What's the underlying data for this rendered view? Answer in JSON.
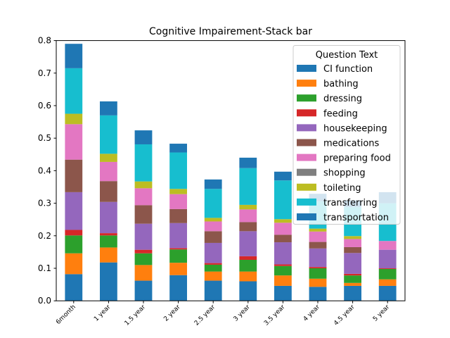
{
  "chart_data": {
    "type": "bar",
    "stacked": true,
    "title": "Cognitive Impairement-Stack bar",
    "xlabel": "",
    "ylabel": "",
    "ylim": [
      0,
      0.8
    ],
    "yticks": [
      "0.0",
      "0.1",
      "0.2",
      "0.3",
      "0.4",
      "0.5",
      "0.6",
      "0.7",
      "0.8"
    ],
    "grid": false,
    "legend": {
      "title": "Question Text",
      "placement": "top-right"
    },
    "categories": [
      "6month",
      "1 year",
      "1.5 year",
      "2 year",
      "2.5 year",
      "3 year",
      "3.5 year",
      "4 year",
      "4.5 year",
      "5 year"
    ],
    "series": [
      {
        "name": "CI function",
        "color": "#1f77b4",
        "values": [
          0.082,
          0.118,
          0.062,
          0.079,
          0.062,
          0.06,
          0.046,
          0.043,
          0.046,
          0.046
        ]
      },
      {
        "name": "bathing",
        "color": "#ff7f0e",
        "values": [
          0.064,
          0.046,
          0.048,
          0.038,
          0.028,
          0.03,
          0.032,
          0.025,
          0.009,
          0.02
        ]
      },
      {
        "name": "dressing",
        "color": "#2ca02c",
        "values": [
          0.055,
          0.037,
          0.036,
          0.041,
          0.021,
          0.036,
          0.029,
          0.032,
          0.023,
          0.032
        ]
      },
      {
        "name": "feeding",
        "color": "#d62728",
        "values": [
          0.017,
          0.007,
          0.011,
          0.004,
          0.005,
          0.011,
          0.005,
          0.004,
          0.005,
          0.002
        ]
      },
      {
        "name": "housekeeping",
        "color": "#9467bd",
        "values": [
          0.116,
          0.096,
          0.08,
          0.077,
          0.062,
          0.077,
          0.068,
          0.057,
          0.064,
          0.057
        ]
      },
      {
        "name": "medications",
        "color": "#8c564b",
        "values": [
          0.1,
          0.064,
          0.057,
          0.043,
          0.036,
          0.028,
          0.023,
          0.02,
          0.018,
          0.0
        ]
      },
      {
        "name": "preparing food",
        "color": "#e377c2",
        "values": [
          0.109,
          0.059,
          0.052,
          0.046,
          0.03,
          0.039,
          0.037,
          0.032,
          0.025,
          0.027
        ]
      },
      {
        "name": "shopping",
        "color": "#7f7f7f",
        "values": [
          0.0,
          0.0,
          0.0,
          0.0,
          0.0,
          0.0,
          0.0,
          0.0,
          0.0,
          0.0
        ]
      },
      {
        "name": "toileting",
        "color": "#bcbd22",
        "values": [
          0.032,
          0.025,
          0.021,
          0.016,
          0.011,
          0.014,
          0.011,
          0.009,
          0.009,
          0.0
        ]
      },
      {
        "name": "transferring",
        "color": "#17becf",
        "values": [
          0.14,
          0.118,
          0.114,
          0.112,
          0.089,
          0.113,
          0.119,
          0.084,
          0.089,
          0.116
        ]
      },
      {
        "name": "transportation",
        "color": "#1f77b4",
        "values": [
          0.075,
          0.043,
          0.043,
          0.027,
          0.029,
          0.032,
          0.027,
          0.023,
          0.021,
          0.034
        ]
      }
    ]
  }
}
